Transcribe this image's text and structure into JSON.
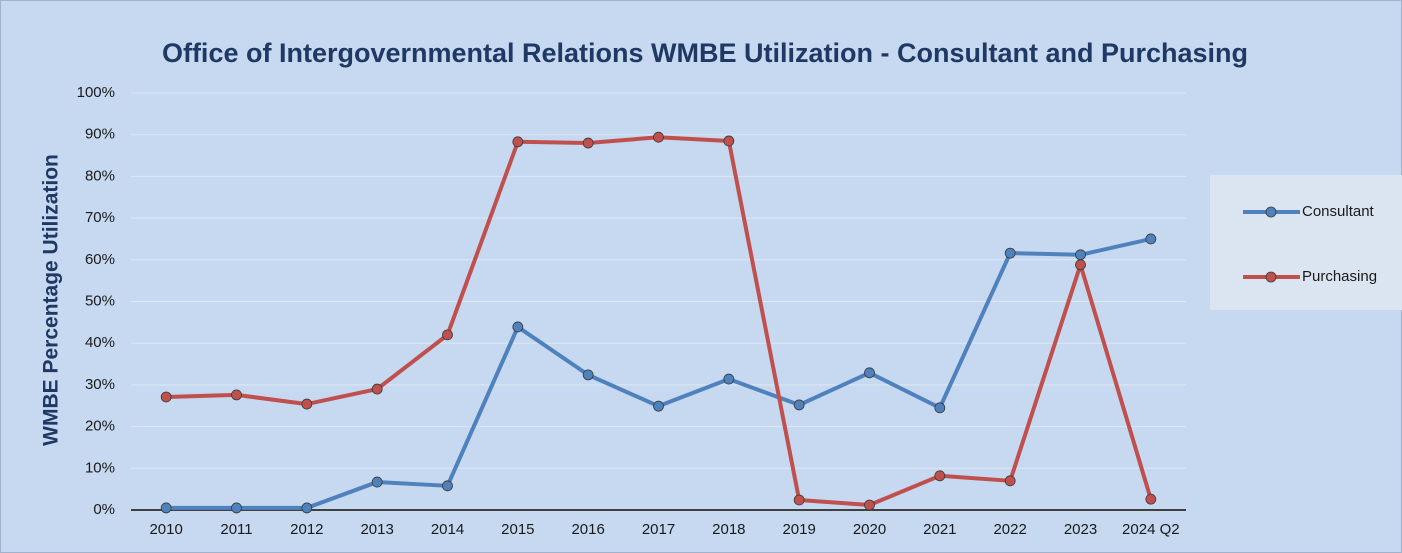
{
  "chart_data": {
    "type": "line",
    "title": "Office of Intergovernmental Relations WMBE Utilization - Consultant and Purchasing",
    "y_label": "WMBE Percentage Utilization",
    "categories": [
      "2010",
      "2011",
      "2012",
      "2013",
      "2014",
      "2015",
      "2016",
      "2017",
      "2018",
      "2019",
      "2020",
      "2021",
      "2022",
      "2023",
      "2024 Q2"
    ],
    "series": [
      {
        "name": "Consultant",
        "color": "#4f81bd",
        "values": [
          0.5,
          0.5,
          0.5,
          6.7,
          5.8,
          43.9,
          32.4,
          24.9,
          31.4,
          25.2,
          32.9,
          24.5,
          61.6,
          61.2,
          65
        ]
      },
      {
        "name": "Purchasing",
        "color": "#c0504d",
        "values": [
          27.1,
          27.6,
          25.4,
          29,
          42,
          88.3,
          88,
          89.4,
          88.5,
          2.4,
          1.2,
          8.2,
          7,
          58.8,
          2.6
        ]
      }
    ],
    "ylim": [
      0,
      100
    ],
    "yticks": [
      {
        "value": 0,
        "label": "0%"
      },
      {
        "value": 10,
        "label": "10%"
      },
      {
        "value": 20,
        "label": "20%"
      },
      {
        "value": 30,
        "label": "30%"
      },
      {
        "value": 40,
        "label": "40%"
      },
      {
        "value": 50,
        "label": "50%"
      },
      {
        "value": 60,
        "label": "60%"
      },
      {
        "value": 70,
        "label": "70%"
      },
      {
        "value": 80,
        "label": "80%"
      },
      {
        "value": 90,
        "label": "90%"
      },
      {
        "value": 100,
        "label": "100%"
      }
    ],
    "grid": true,
    "legend": "right"
  }
}
